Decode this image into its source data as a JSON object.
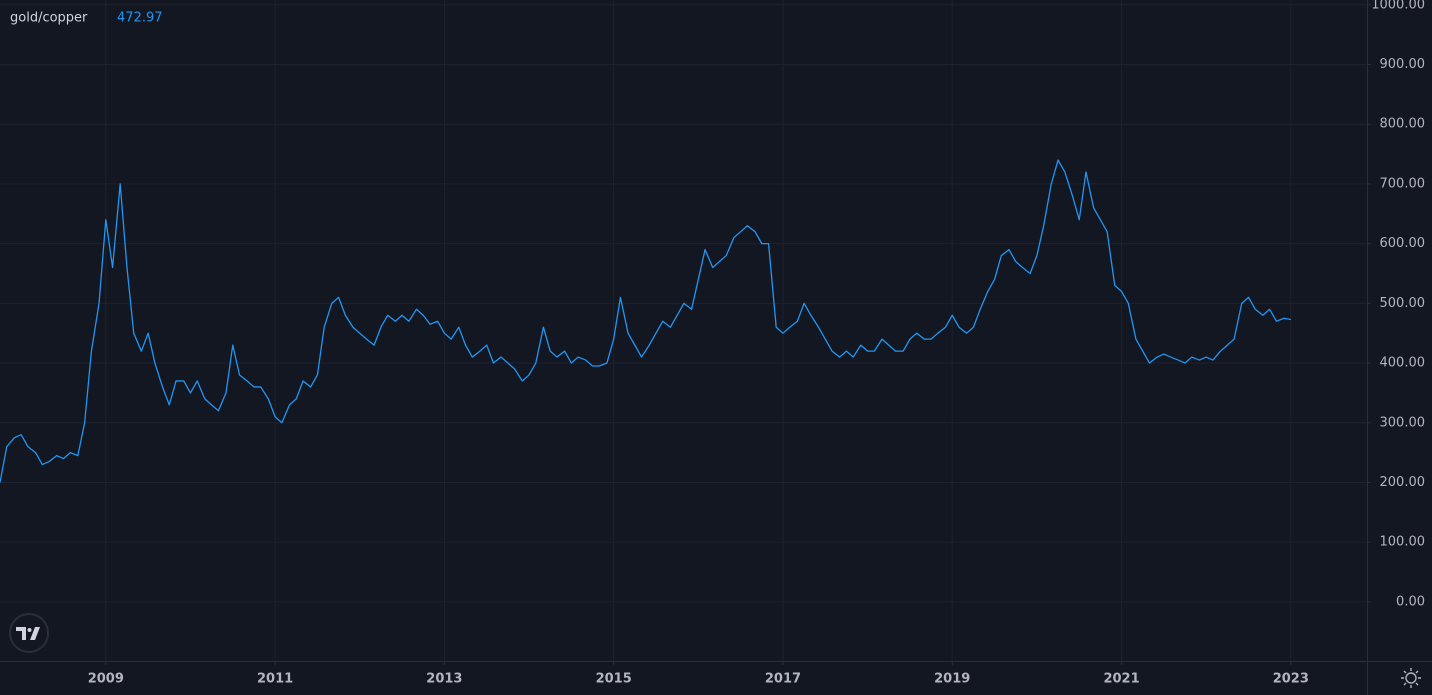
{
  "chart_data": {
    "type": "line",
    "series": [
      {
        "name": "gold/copper",
        "color": "#2196f3",
        "values": [
          200,
          260,
          275,
          280,
          260,
          250,
          230,
          235,
          245,
          240,
          250,
          245,
          300,
          420,
          500,
          640,
          560,
          700,
          560,
          450,
          420,
          450,
          400,
          360,
          330,
          370,
          370,
          350,
          370,
          340,
          330,
          320,
          350,
          430,
          380,
          370,
          360,
          360,
          340,
          310,
          300,
          330,
          340,
          370,
          360,
          380,
          460,
          500,
          510,
          480,
          460,
          450,
          440,
          430,
          460,
          480,
          470,
          480,
          470,
          490,
          480,
          465,
          470,
          450,
          440,
          460,
          430,
          410,
          420,
          430,
          400,
          410,
          400,
          390,
          370,
          380,
          400,
          460,
          420,
          410,
          420,
          400,
          410,
          405,
          395,
          395,
          400,
          440,
          510,
          450,
          430,
          410,
          430,
          450,
          470,
          460,
          480,
          500,
          490,
          540,
          590,
          560,
          570,
          580,
          610,
          620,
          630,
          620,
          600,
          600,
          460,
          450,
          460,
          470,
          500,
          480,
          460,
          440,
          420,
          410,
          420,
          410,
          430,
          420,
          420,
          440,
          430,
          420,
          420,
          440,
          450,
          440,
          440,
          450,
          460,
          480,
          460,
          450,
          460,
          490,
          520,
          540,
          580,
          590,
          570,
          560,
          550,
          580,
          630,
          700,
          740,
          720,
          680,
          640,
          720,
          660,
          640,
          620,
          530,
          520,
          500,
          440,
          420,
          400,
          410,
          415,
          410,
          405,
          400,
          410,
          405,
          410,
          405,
          420,
          430,
          440,
          500,
          510,
          490,
          480,
          490,
          470,
          475,
          472.97
        ]
      }
    ],
    "x": [
      2007.75,
      2007.83,
      2007.92,
      2008.0,
      2008.08,
      2008.17,
      2008.25,
      2008.33,
      2008.42,
      2008.5,
      2008.58,
      2008.67,
      2008.75,
      2008.83,
      2008.92,
      2009.0,
      2009.08,
      2009.17,
      2009.25,
      2009.33,
      2009.42,
      2009.5,
      2009.58,
      2009.67,
      2009.75,
      2009.83,
      2009.92,
      2010.0,
      2010.08,
      2010.17,
      2010.25,
      2010.33,
      2010.42,
      2010.5,
      2010.58,
      2010.67,
      2010.75,
      2010.83,
      2010.92,
      2011.0,
      2011.08,
      2011.17,
      2011.25,
      2011.33,
      2011.42,
      2011.5,
      2011.58,
      2011.67,
      2011.75,
      2011.83,
      2011.92,
      2012.0,
      2012.08,
      2012.17,
      2012.25,
      2012.33,
      2012.42,
      2012.5,
      2012.58,
      2012.67,
      2012.75,
      2012.83,
      2012.92,
      2013.0,
      2013.08,
      2013.17,
      2013.25,
      2013.33,
      2013.42,
      2013.5,
      2013.58,
      2013.67,
      2013.75,
      2013.83,
      2013.92,
      2014.0,
      2014.08,
      2014.17,
      2014.25,
      2014.33,
      2014.42,
      2014.5,
      2014.58,
      2014.67,
      2014.75,
      2014.83,
      2014.92,
      2015.0,
      2015.08,
      2015.17,
      2015.25,
      2015.33,
      2015.42,
      2015.5,
      2015.58,
      2015.67,
      2015.75,
      2015.83,
      2015.92,
      2016.0,
      2016.08,
      2016.17,
      2016.25,
      2016.33,
      2016.42,
      2016.5,
      2016.58,
      2016.67,
      2016.75,
      2016.83,
      2016.92,
      2017.0,
      2017.08,
      2017.17,
      2017.25,
      2017.33,
      2017.42,
      2017.5,
      2017.58,
      2017.67,
      2017.75,
      2017.83,
      2017.92,
      2018.0,
      2018.08,
      2018.17,
      2018.25,
      2018.33,
      2018.42,
      2018.5,
      2018.58,
      2018.67,
      2018.75,
      2018.83,
      2018.92,
      2019.0,
      2019.08,
      2019.17,
      2019.25,
      2019.33,
      2019.42,
      2019.5,
      2019.58,
      2019.67,
      2019.75,
      2019.83,
      2019.92,
      2020.0,
      2020.08,
      2020.17,
      2020.25,
      2020.33,
      2020.42,
      2020.5,
      2020.58,
      2020.67,
      2020.75,
      2020.83,
      2020.92,
      2021.0,
      2021.08,
      2021.17,
      2021.25,
      2021.33,
      2021.42,
      2021.5,
      2021.58,
      2021.67,
      2021.75,
      2021.83,
      2021.92,
      2022.0,
      2022.08,
      2022.17,
      2022.25,
      2022.33,
      2022.42,
      2022.5,
      2022.58,
      2022.67,
      2022.75,
      2022.83,
      2022.92,
      2023.0
    ],
    "xlim": [
      2007.75,
      2023.9
    ],
    "xticks": [
      2009,
      2011,
      2013,
      2015,
      2017,
      2019,
      2021,
      2023
    ],
    "ylim": [
      -99,
      1008
    ],
    "yticks": [
      {
        "value": 0,
        "label": "0.00"
      },
      {
        "value": 100,
        "label": "100.00"
      },
      {
        "value": 200,
        "label": "200.00"
      },
      {
        "value": 300,
        "label": "300.00"
      },
      {
        "value": 400,
        "label": "400.00"
      },
      {
        "value": 500,
        "label": "500.00"
      },
      {
        "value": 600,
        "label": "600.00"
      },
      {
        "value": 700,
        "label": "700.00"
      },
      {
        "value": 800,
        "label": "800.00"
      },
      {
        "value": 900,
        "label": "900.00"
      },
      {
        "value": 1000,
        "label": "1000.00"
      }
    ],
    "grid": true
  }
}
